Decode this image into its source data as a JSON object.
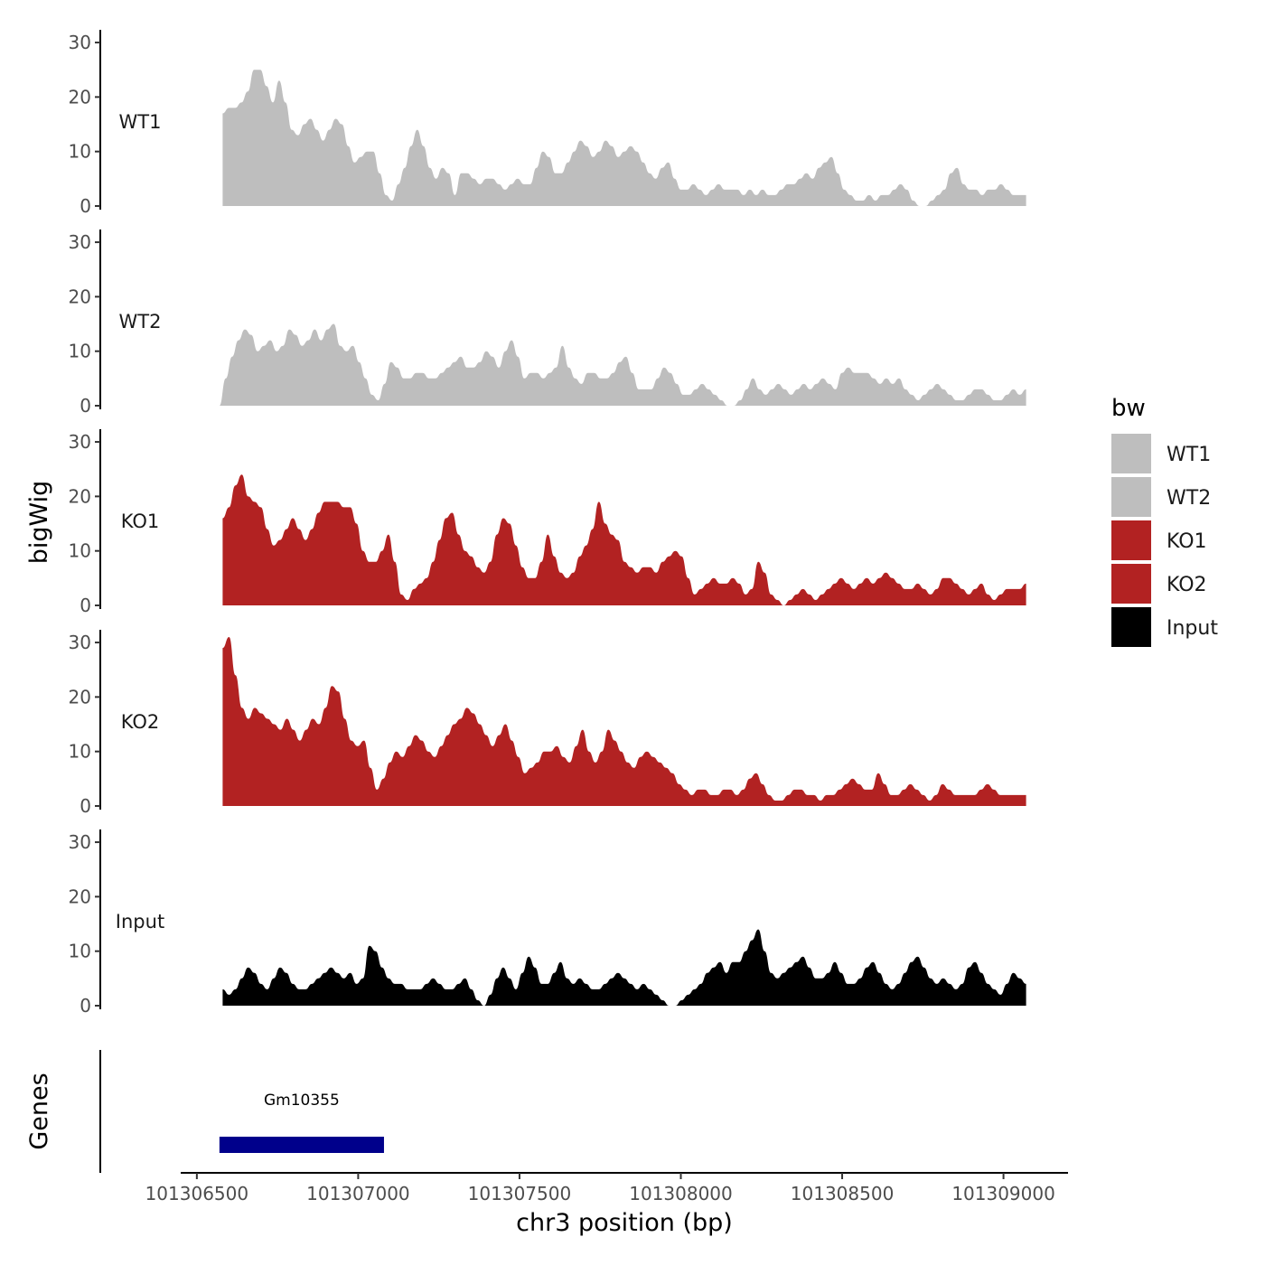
{
  "chart_data": {
    "type": "area",
    "title": "",
    "xlabel": "chr3 position (bp)",
    "ylabel": "bigWig",
    "genes_label": "Genes",
    "xlim": [
      101306450,
      101309200
    ],
    "ylim": [
      0,
      32
    ],
    "x_ticks": [
      101306500,
      101307000,
      101307500,
      101308000,
      101308500,
      101309000
    ],
    "x_tick_labels": [
      "101306500",
      "101307000",
      "101307500",
      "101308000",
      "101308500",
      "101309000"
    ],
    "y_ticks": [
      0,
      10,
      20,
      30
    ],
    "y_tick_labels": [
      "0",
      "10",
      "20",
      "30"
    ],
    "legend": {
      "title": "bw",
      "position": "right",
      "entries": [
        {
          "label": "WT1",
          "color": "#bebebe"
        },
        {
          "label": "WT2",
          "color": "#bebebe"
        },
        {
          "label": "KO1",
          "color": "#b22222"
        },
        {
          "label": "KO2",
          "color": "#b22222"
        },
        {
          "label": "Input",
          "color": "#000000"
        }
      ]
    },
    "tracks": [
      {
        "name": "WT1",
        "color": "#bebebe",
        "x_start": 101306580,
        "x_end": 101309070,
        "values": [
          17,
          18,
          18,
          19,
          21,
          25,
          25,
          22,
          19,
          23,
          19,
          14,
          13,
          15,
          16,
          14,
          12,
          14,
          16,
          15,
          11,
          8,
          9,
          10,
          10,
          6,
          2,
          1,
          4,
          7,
          11,
          14,
          11,
          7,
          5,
          7,
          6,
          2,
          6,
          6,
          5,
          4,
          5,
          5,
          4,
          3,
          4,
          5,
          4,
          4,
          7,
          10,
          9,
          6,
          6,
          8,
          10,
          12,
          11,
          9,
          10,
          12,
          11,
          9,
          10,
          11,
          10,
          8,
          6,
          5,
          7,
          8,
          5,
          3,
          3,
          4,
          3,
          2,
          3,
          4,
          3,
          3,
          3,
          2,
          3,
          2,
          3,
          2,
          2,
          3,
          4,
          4,
          5,
          6,
          5,
          7,
          8,
          9,
          6,
          3,
          2,
          1,
          1,
          2,
          1,
          2,
          2,
          3,
          4,
          3,
          1,
          0,
          0,
          1,
          2,
          3,
          6,
          7,
          4,
          3,
          3,
          2,
          3,
          3,
          4,
          3,
          2,
          2,
          2
        ]
      },
      {
        "name": "WT2",
        "color": "#bebebe",
        "x_start": 101306570,
        "x_end": 101309070,
        "values": [
          0,
          5,
          9,
          12,
          14,
          13,
          10,
          11,
          12,
          10,
          11,
          14,
          13,
          11,
          12,
          14,
          12,
          14,
          15,
          11,
          10,
          11,
          8,
          5,
          2,
          1,
          4,
          8,
          7,
          5,
          5,
          6,
          6,
          5,
          5,
          6,
          7,
          8,
          9,
          7,
          7,
          8,
          10,
          9,
          7,
          10,
          12,
          9,
          5,
          6,
          6,
          5,
          6,
          7,
          11,
          7,
          5,
          4,
          6,
          6,
          5,
          5,
          6,
          8,
          9,
          6,
          3,
          3,
          3,
          5,
          7,
          6,
          4,
          2,
          2,
          3,
          4,
          3,
          2,
          1,
          0,
          0,
          1,
          3,
          5,
          3,
          2,
          3,
          4,
          3,
          2,
          3,
          4,
          3,
          4,
          5,
          4,
          3,
          6,
          7,
          6,
          6,
          6,
          5,
          4,
          5,
          4,
          5,
          3,
          2,
          1,
          2,
          3,
          4,
          3,
          2,
          1,
          1,
          2,
          3,
          3,
          2,
          1,
          1,
          2,
          3,
          2,
          3
        ]
      },
      {
        "name": "KO1",
        "color": "#b22222",
        "x_start": 101306580,
        "x_end": 101309070,
        "values": [
          16,
          18,
          22,
          24,
          20,
          19,
          18,
          14,
          11,
          12,
          14,
          16,
          14,
          12,
          14,
          17,
          19,
          19,
          19,
          18,
          18,
          15,
          10,
          8,
          8,
          10,
          13,
          8,
          2,
          1,
          3,
          4,
          5,
          8,
          12,
          16,
          17,
          13,
          10,
          9,
          7,
          6,
          8,
          13,
          16,
          15,
          11,
          7,
          5,
          5,
          8,
          13,
          9,
          6,
          5,
          6,
          9,
          11,
          14,
          19,
          15,
          13,
          12,
          8,
          7,
          6,
          7,
          7,
          6,
          8,
          9,
          10,
          9,
          5,
          2,
          3,
          4,
          5,
          4,
          4,
          5,
          4,
          2,
          3,
          8,
          6,
          2,
          1,
          0,
          1,
          2,
          3,
          2,
          1,
          2,
          3,
          4,
          5,
          4,
          3,
          4,
          5,
          4,
          5,
          6,
          5,
          4,
          3,
          3,
          4,
          3,
          2,
          3,
          5,
          5,
          4,
          3,
          2,
          3,
          4,
          2,
          1,
          2,
          3,
          3,
          3,
          4
        ]
      },
      {
        "name": "KO2",
        "color": "#b22222",
        "x_start": 101306580,
        "x_end": 101309070,
        "values": [
          29,
          31,
          24,
          18,
          16,
          18,
          17,
          16,
          15,
          14,
          16,
          14,
          12,
          14,
          16,
          15,
          18,
          22,
          21,
          16,
          12,
          11,
          12,
          7,
          3,
          5,
          8,
          10,
          9,
          11,
          13,
          12,
          10,
          9,
          11,
          13,
          15,
          16,
          18,
          17,
          15,
          13,
          11,
          13,
          15,
          12,
          9,
          6,
          7,
          8,
          10,
          10,
          11,
          9,
          8,
          11,
          14,
          10,
          8,
          10,
          14,
          12,
          10,
          8,
          7,
          9,
          10,
          9,
          8,
          7,
          6,
          4,
          3,
          2,
          3,
          3,
          2,
          2,
          3,
          3,
          2,
          3,
          5,
          6,
          4,
          2,
          1,
          1,
          2,
          3,
          3,
          2,
          2,
          1,
          2,
          2,
          3,
          4,
          5,
          4,
          3,
          3,
          6,
          4,
          2,
          2,
          3,
          4,
          3,
          2,
          1,
          2,
          4,
          3,
          2,
          2,
          2,
          2,
          3,
          4,
          3,
          2,
          2,
          2,
          2,
          2
        ]
      },
      {
        "name": "Input",
        "color": "#000000",
        "x_start": 101306580,
        "x_end": 101309070,
        "values": [
          3,
          2,
          3,
          5,
          7,
          6,
          4,
          3,
          5,
          7,
          6,
          4,
          3,
          3,
          4,
          5,
          6,
          7,
          6,
          5,
          6,
          4,
          5,
          11,
          10,
          7,
          5,
          4,
          4,
          3,
          3,
          3,
          4,
          5,
          4,
          3,
          3,
          4,
          5,
          3,
          1,
          0,
          2,
          5,
          7,
          5,
          3,
          6,
          9,
          7,
          4,
          4,
          6,
          8,
          5,
          4,
          5,
          4,
          3,
          3,
          4,
          5,
          6,
          5,
          4,
          3,
          4,
          3,
          2,
          1,
          0,
          0,
          1,
          2,
          3,
          4,
          6,
          7,
          8,
          6,
          8,
          8,
          10,
          12,
          14,
          10,
          6,
          5,
          6,
          7,
          8,
          9,
          7,
          5,
          5,
          6,
          8,
          6,
          4,
          4,
          5,
          7,
          8,
          6,
          4,
          3,
          4,
          6,
          8,
          9,
          7,
          5,
          4,
          5,
          4,
          3,
          4,
          7,
          8,
          6,
          4,
          3,
          2,
          4,
          6,
          5,
          4
        ]
      }
    ],
    "genes": [
      {
        "name": "Gm10355",
        "start": 101306570,
        "end": 101307080,
        "color": "#00008b"
      }
    ]
  }
}
